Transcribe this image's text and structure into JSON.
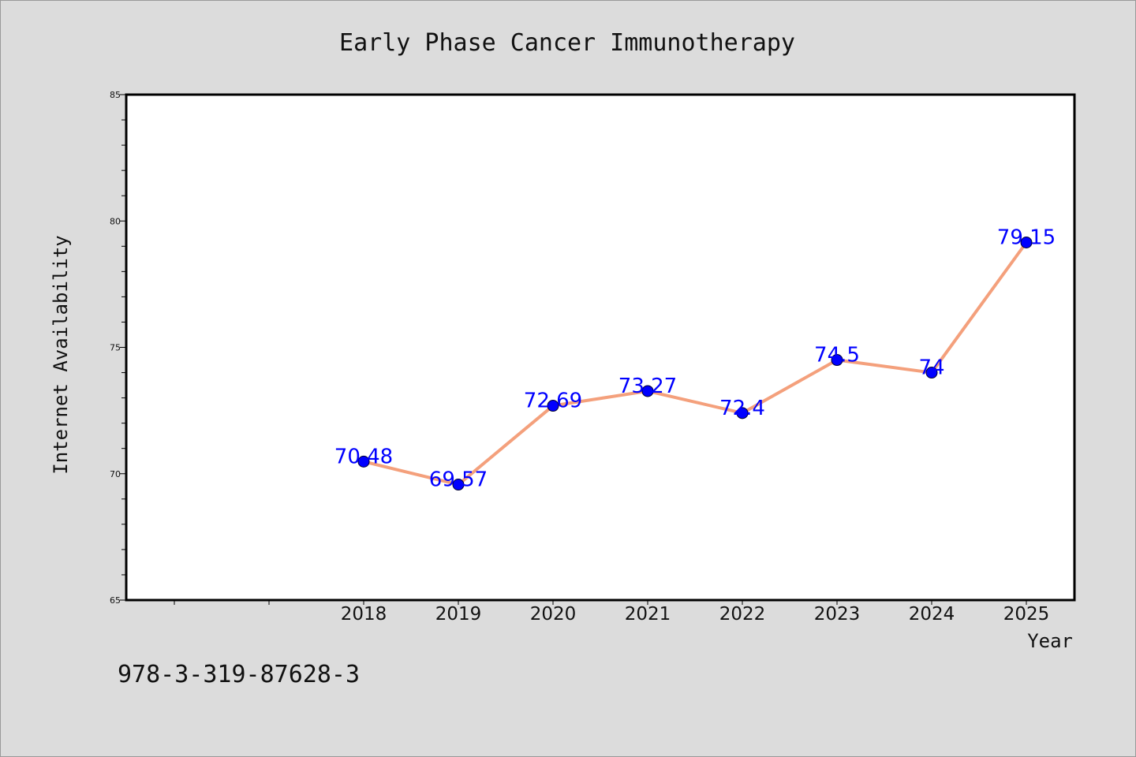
{
  "chart_data": {
    "type": "line",
    "title": "Early Phase Cancer Immunotherapy",
    "xlabel": "Year",
    "ylabel": "Internet Availability",
    "x": [
      "2018",
      "2019",
      "2020",
      "2021",
      "2022",
      "2023",
      "2024",
      "2025"
    ],
    "series": [
      {
        "values": [
          70.48,
          69.57,
          72.69,
          73.27,
          72.4,
          74.5,
          74,
          79.15
        ],
        "labels": [
          "70.48",
          "69.57",
          "72.69",
          "73.27",
          "72.4",
          "74.5",
          "74",
          "79.15"
        ],
        "line_color": "#f4a07c",
        "marker_color": "#0000ff"
      }
    ],
    "ylim": [
      65,
      85
    ],
    "yticks": [
      "65",
      "70",
      "75",
      "80",
      "85"
    ],
    "grid": false,
    "legend": "none"
  },
  "footer": {
    "isbn": "978-3-319-87628-3"
  }
}
